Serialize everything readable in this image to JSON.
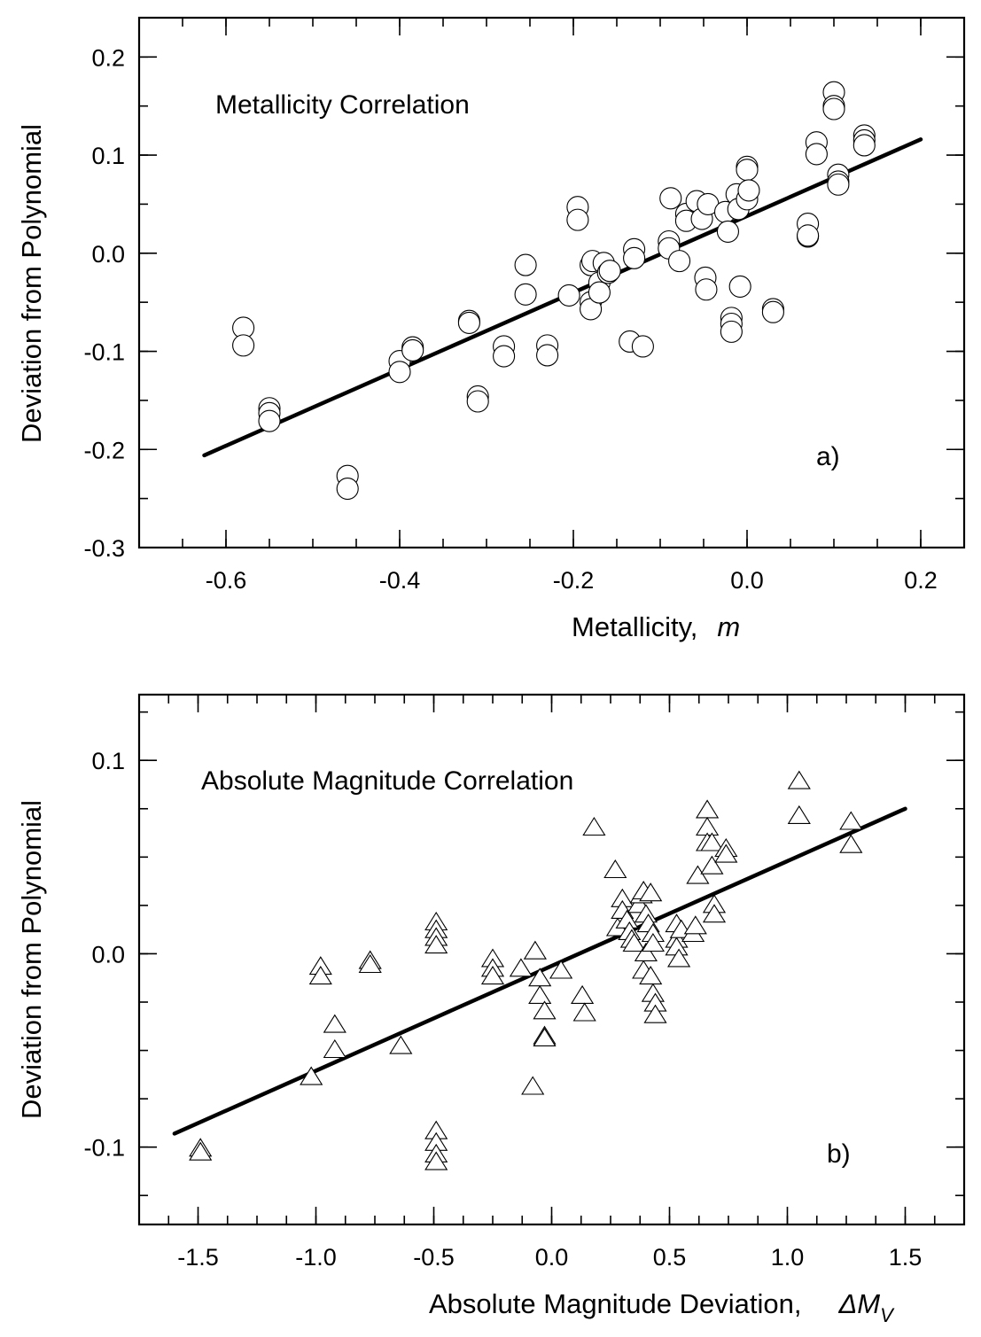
{
  "chart_data": [
    {
      "type": "scatter",
      "panel": "a)",
      "title": "Metallicity Correlation",
      "xlabel": "Metallicity,",
      "xlabel_symbol": "m",
      "ylabel": "Deviation from Polynomial",
      "xlim": [
        -0.7,
        0.25
      ],
      "ylim": [
        -0.3,
        0.24
      ],
      "xticks": [
        -0.6,
        -0.4,
        -0.2,
        0.0,
        0.2
      ],
      "xtick_labels": [
        "-0.6",
        "-0.4",
        "-0.2",
        "0.0",
        "0.2"
      ],
      "yticks": [
        -0.3,
        -0.2,
        -0.1,
        0.0,
        0.1,
        0.2
      ],
      "ytick_labels": [
        "-0.3",
        "-0.2",
        "-0.1",
        "0.0",
        "0.1",
        "0.2"
      ],
      "marker": "circle",
      "fit_line": {
        "x": [
          -0.625,
          0.2
        ],
        "y": [
          -0.206,
          0.116
        ]
      },
      "points": [
        [
          -0.58,
          -0.076
        ],
        [
          -0.58,
          -0.094
        ],
        [
          -0.55,
          -0.158
        ],
        [
          -0.55,
          -0.163
        ],
        [
          -0.55,
          -0.171
        ],
        [
          -0.46,
          -0.227
        ],
        [
          -0.46,
          -0.24
        ],
        [
          -0.4,
          -0.11
        ],
        [
          -0.4,
          -0.121
        ],
        [
          -0.385,
          -0.096
        ],
        [
          -0.385,
          -0.099
        ],
        [
          -0.32,
          -0.069
        ],
        [
          -0.32,
          -0.071
        ],
        [
          -0.31,
          -0.146
        ],
        [
          -0.31,
          -0.151
        ],
        [
          -0.28,
          -0.095
        ],
        [
          -0.28,
          -0.105
        ],
        [
          -0.255,
          -0.012
        ],
        [
          -0.255,
          -0.042
        ],
        [
          -0.23,
          -0.094
        ],
        [
          -0.23,
          -0.104
        ],
        [
          -0.205,
          -0.043
        ],
        [
          -0.195,
          0.047
        ],
        [
          -0.195,
          0.034
        ],
        [
          -0.18,
          -0.05
        ],
        [
          -0.18,
          -0.057
        ],
        [
          -0.18,
          -0.012
        ],
        [
          -0.178,
          -0.008
        ],
        [
          -0.17,
          -0.03
        ],
        [
          -0.17,
          -0.04
        ],
        [
          -0.165,
          -0.01
        ],
        [
          -0.16,
          -0.02
        ],
        [
          -0.158,
          -0.018
        ],
        [
          -0.135,
          -0.09
        ],
        [
          -0.13,
          0.004
        ],
        [
          -0.13,
          -0.005
        ],
        [
          -0.12,
          -0.095
        ],
        [
          -0.09,
          0.012
        ],
        [
          -0.09,
          0.005
        ],
        [
          -0.088,
          0.056
        ],
        [
          -0.078,
          -0.008
        ],
        [
          -0.07,
          0.04
        ],
        [
          -0.07,
          0.033
        ],
        [
          -0.058,
          0.053
        ],
        [
          -0.052,
          0.035
        ],
        [
          -0.048,
          -0.025
        ],
        [
          -0.047,
          -0.037
        ],
        [
          -0.045,
          0.05
        ],
        [
          -0.025,
          0.042
        ],
        [
          -0.022,
          0.022
        ],
        [
          -0.018,
          -0.066
        ],
        [
          -0.018,
          -0.072
        ],
        [
          -0.018,
          -0.08
        ],
        [
          -0.012,
          0.06
        ],
        [
          -0.01,
          0.045
        ],
        [
          -0.008,
          -0.034
        ],
        [
          0.0,
          0.088
        ],
        [
          0.0,
          0.085
        ],
        [
          0.0,
          0.055
        ],
        [
          0.002,
          0.064
        ],
        [
          0.03,
          -0.057
        ],
        [
          0.03,
          -0.06
        ],
        [
          0.07,
          0.03
        ],
        [
          0.07,
          0.017
        ],
        [
          0.07,
          0.018
        ],
        [
          0.08,
          0.113
        ],
        [
          0.08,
          0.101
        ],
        [
          0.1,
          0.164
        ],
        [
          0.1,
          0.15
        ],
        [
          0.1,
          0.147
        ],
        [
          0.105,
          0.08
        ],
        [
          0.105,
          0.073
        ],
        [
          0.105,
          0.07
        ],
        [
          0.135,
          0.12
        ],
        [
          0.135,
          0.115
        ],
        [
          0.135,
          0.11
        ]
      ]
    },
    {
      "type": "scatter",
      "panel": "b)",
      "title": "Absolute Magnitude Correlation",
      "xlabel": "Absolute Magnitude Deviation,",
      "xlabel_symbol": "ΔM",
      "xlabel_subscript": "V",
      "ylabel": "Deviation from Polynomial",
      "xlim": [
        -1.75,
        1.75
      ],
      "ylim": [
        -0.14,
        0.134
      ],
      "xticks": [
        -1.5,
        -1.0,
        -0.5,
        0.0,
        0.5,
        1.0,
        1.5
      ],
      "xtick_labels": [
        "-1.5",
        "-1.0",
        "-0.5",
        "0.0",
        "0.5",
        "1.0",
        "1.5"
      ],
      "yticks": [
        -0.1,
        0.0,
        0.1
      ],
      "ytick_labels": [
        "-0.1",
        "0.0",
        "0.1"
      ],
      "marker": "triangle",
      "fit_line": {
        "x": [
          -1.6,
          1.5
        ],
        "y": [
          -0.093,
          0.075
        ]
      },
      "points": [
        [
          -1.49,
          -0.101
        ],
        [
          -1.49,
          -0.103
        ],
        [
          -1.02,
          -0.064
        ],
        [
          -0.98,
          -0.007
        ],
        [
          -0.98,
          -0.012
        ],
        [
          -0.92,
          -0.037
        ],
        [
          -0.92,
          -0.05
        ],
        [
          -0.77,
          -0.004
        ],
        [
          -0.77,
          -0.006
        ],
        [
          -0.64,
          -0.048
        ],
        [
          -0.49,
          0.016
        ],
        [
          -0.49,
          0.012
        ],
        [
          -0.49,
          0.008
        ],
        [
          -0.49,
          0.004
        ],
        [
          -0.49,
          -0.092
        ],
        [
          -0.49,
          -0.098
        ],
        [
          -0.49,
          -0.104
        ],
        [
          -0.49,
          -0.108
        ],
        [
          -0.25,
          -0.003
        ],
        [
          -0.25,
          -0.008
        ],
        [
          -0.25,
          -0.012
        ],
        [
          -0.13,
          -0.008
        ],
        [
          -0.08,
          -0.069
        ],
        [
          -0.07,
          0.001
        ],
        [
          -0.05,
          -0.013
        ],
        [
          -0.05,
          -0.022
        ],
        [
          -0.03,
          -0.03
        ],
        [
          -0.03,
          -0.043
        ],
        [
          -0.03,
          -0.044
        ],
        [
          0.04,
          -0.009
        ],
        [
          0.13,
          -0.022
        ],
        [
          0.14,
          -0.031
        ],
        [
          0.18,
          0.065
        ],
        [
          0.27,
          0.043
        ],
        [
          0.28,
          0.013
        ],
        [
          0.3,
          0.028
        ],
        [
          0.3,
          0.022
        ],
        [
          0.32,
          0.017
        ],
        [
          0.33,
          0.011
        ],
        [
          0.34,
          0.007
        ],
        [
          0.35,
          0.005
        ],
        [
          0.37,
          0.025
        ],
        [
          0.38,
          0.03
        ],
        [
          0.39,
          0.032
        ],
        [
          0.39,
          -0.009
        ],
        [
          0.4,
          0.0
        ],
        [
          0.4,
          0.02
        ],
        [
          0.41,
          0.015
        ],
        [
          0.42,
          0.031
        ],
        [
          0.42,
          -0.012
        ],
        [
          0.43,
          0.01
        ],
        [
          0.43,
          0.005
        ],
        [
          0.43,
          -0.021
        ],
        [
          0.44,
          -0.026
        ],
        [
          0.44,
          -0.032
        ],
        [
          0.53,
          0.015
        ],
        [
          0.53,
          0.007
        ],
        [
          0.53,
          0.003
        ],
        [
          0.54,
          -0.003
        ],
        [
          0.55,
          0.012
        ],
        [
          0.6,
          0.01
        ],
        [
          0.61,
          0.014
        ],
        [
          0.62,
          0.04
        ],
        [
          0.66,
          0.074
        ],
        [
          0.66,
          0.065
        ],
        [
          0.66,
          0.057
        ],
        [
          0.68,
          0.057
        ],
        [
          0.68,
          0.045
        ],
        [
          0.69,
          0.025
        ],
        [
          0.69,
          0.02
        ],
        [
          0.74,
          0.054
        ],
        [
          0.74,
          0.051
        ],
        [
          1.05,
          0.089
        ],
        [
          1.05,
          0.071
        ],
        [
          1.27,
          0.068
        ],
        [
          1.27,
          0.056
        ]
      ]
    }
  ]
}
